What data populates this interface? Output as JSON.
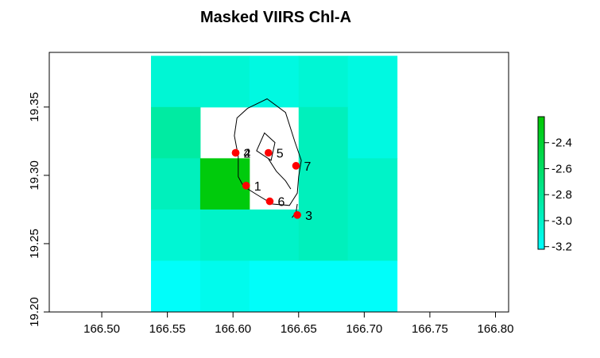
{
  "chart_data": {
    "type": "heatmap",
    "title": "Masked VIIRS Chl-A",
    "xlabel": "",
    "ylabel": "",
    "xlim": [
      166.46,
      166.81
    ],
    "ylim": [
      19.2,
      19.39
    ],
    "x_ticks": [
      {
        "value": 166.5,
        "label": "166.50"
      },
      {
        "value": 166.55,
        "label": "166.55"
      },
      {
        "value": 166.6,
        "label": "166.60"
      },
      {
        "value": 166.65,
        "label": "166.65"
      },
      {
        "value": 166.7,
        "label": "166.70"
      },
      {
        "value": 166.75,
        "label": "166.75"
      },
      {
        "value": 166.8,
        "label": "166.80"
      }
    ],
    "y_ticks": [
      {
        "value": 19.2,
        "label": "19.20"
      },
      {
        "value": 19.25,
        "label": "19.25"
      },
      {
        "value": 19.3,
        "label": "19.30"
      },
      {
        "value": 19.35,
        "label": "19.35"
      }
    ],
    "grid_x_edges": [
      166.5375,
      166.575,
      166.6125,
      166.65,
      166.6875,
      166.725
    ],
    "grid_y_edges": [
      19.2,
      19.2375,
      19.275,
      19.3125,
      19.35,
      19.3875
    ],
    "cell_values_top_to_bottom": [
      [
        -3.05,
        -3.05,
        -3.1,
        -3.05,
        -3.1
      ],
      [
        -2.85,
        null,
        null,
        -2.95,
        -3.1
      ],
      [
        -2.95,
        -2.25,
        null,
        -2.95,
        -3.0
      ],
      [
        -3.05,
        -3.0,
        -3.0,
        -2.95,
        -3.0
      ],
      [
        -3.2,
        -3.15,
        -3.2,
        -3.2,
        -3.2
      ]
    ],
    "colorbar": {
      "range": [
        -3.22,
        -2.2
      ],
      "color_low": "#00ffff",
      "color_high": "#00c800",
      "ticks": [
        {
          "value": -2.4,
          "label": "-2.4"
        },
        {
          "value": -2.6,
          "label": "-2.6"
        },
        {
          "value": -2.8,
          "label": "-2.8"
        },
        {
          "value": -3.0,
          "label": "-3.0"
        },
        {
          "value": -3.2,
          "label": "-3.2"
        }
      ]
    },
    "points": [
      {
        "label": "1",
        "x": 166.61,
        "y": 19.2925
      },
      {
        "label": "2",
        "x": 166.602,
        "y": 19.3165
      },
      {
        "label": "4",
        "x": 166.602,
        "y": 19.3165
      },
      {
        "label": "5",
        "x": 166.627,
        "y": 19.3165
      },
      {
        "label": "6",
        "x": 166.628,
        "y": 19.281
      },
      {
        "label": "7",
        "x": 166.648,
        "y": 19.307
      },
      {
        "label": "3",
        "x": 166.649,
        "y": 19.271
      }
    ],
    "contours": [
      {
        "label": "",
        "closed": true,
        "coords": [
          [
            166.626,
            19.356
          ],
          [
            166.64,
            19.346
          ],
          [
            166.647,
            19.325
          ],
          [
            166.652,
            19.311
          ],
          [
            166.65,
            19.299
          ],
          [
            166.649,
            19.287
          ],
          [
            166.643,
            19.278
          ],
          [
            166.63,
            19.279
          ],
          [
            166.618,
            19.286
          ],
          [
            166.608,
            19.292
          ],
          [
            166.604,
            19.299
          ],
          [
            166.604,
            19.314
          ],
          [
            166.601,
            19.329
          ],
          [
            166.603,
            19.342
          ],
          [
            166.611,
            19.349
          ]
        ]
      },
      {
        "label": "",
        "closed": true,
        "coords": [
          [
            166.624,
            19.331
          ],
          [
            166.632,
            19.324
          ],
          [
            166.629,
            19.311
          ],
          [
            166.618,
            19.318
          ]
        ]
      },
      {
        "label": "",
        "closed": false,
        "coords": [
          [
            166.627,
            19.312
          ],
          [
            166.633,
            19.303
          ],
          [
            166.64,
            19.296
          ],
          [
            166.644,
            19.29
          ]
        ]
      },
      {
        "label": "",
        "closed": false,
        "coords": [
          [
            166.649,
            19.279
          ],
          [
            166.648,
            19.273
          ],
          [
            166.645,
            19.269
          ]
        ]
      }
    ]
  }
}
